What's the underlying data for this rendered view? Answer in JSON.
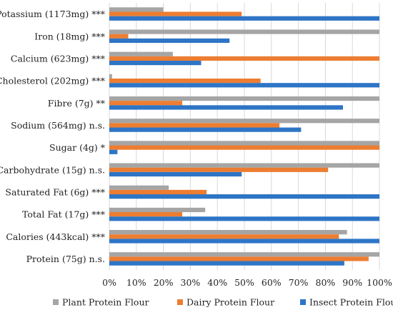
{
  "chart_data": {
    "type": "bar",
    "orientation": "horizontal",
    "categories": [
      "Potassium (1173mg) ***",
      "Iron (18mg) ***",
      "Calcium (623mg) ***",
      "Cholesterol (202mg) ***",
      "Fibre (7g) **",
      "Sodium (564mg) n.s.",
      "Sugar (4g) *",
      "Carbohydrate (15g) n.s.",
      "Saturated Fat (6g) ***",
      "Total Fat (17g) ***",
      "Calories (443kcal) ***",
      "Protein (75g) n.s."
    ],
    "series": [
      {
        "name": "Plant Protein Flour",
        "color": "#a5a5a5",
        "values": [
          20,
          100,
          23.5,
          1,
          100,
          100,
          100,
          100,
          22,
          35.5,
          88,
          100
        ]
      },
      {
        "name": "Dairy Protein Flour",
        "color": "#ed7d31",
        "values": [
          49,
          7,
          100,
          56,
          27,
          63,
          100,
          81,
          36,
          27,
          85,
          96
        ]
      },
      {
        "name": "Insect Protein Flour",
        "color": "#2e75c6",
        "values": [
          100,
          44.5,
          34,
          100,
          86.5,
          71,
          3,
          49,
          100,
          100,
          100,
          87
        ]
      }
    ],
    "xlim": [
      0,
      100
    ],
    "x_ticks": [
      "0%",
      "10%",
      "20%",
      "30%",
      "40%",
      "50%",
      "60%",
      "70%",
      "80%",
      "90%",
      "100%"
    ],
    "grid": true,
    "legend_position": "bottom",
    "title": "",
    "xlabel": "",
    "ylabel": ""
  }
}
